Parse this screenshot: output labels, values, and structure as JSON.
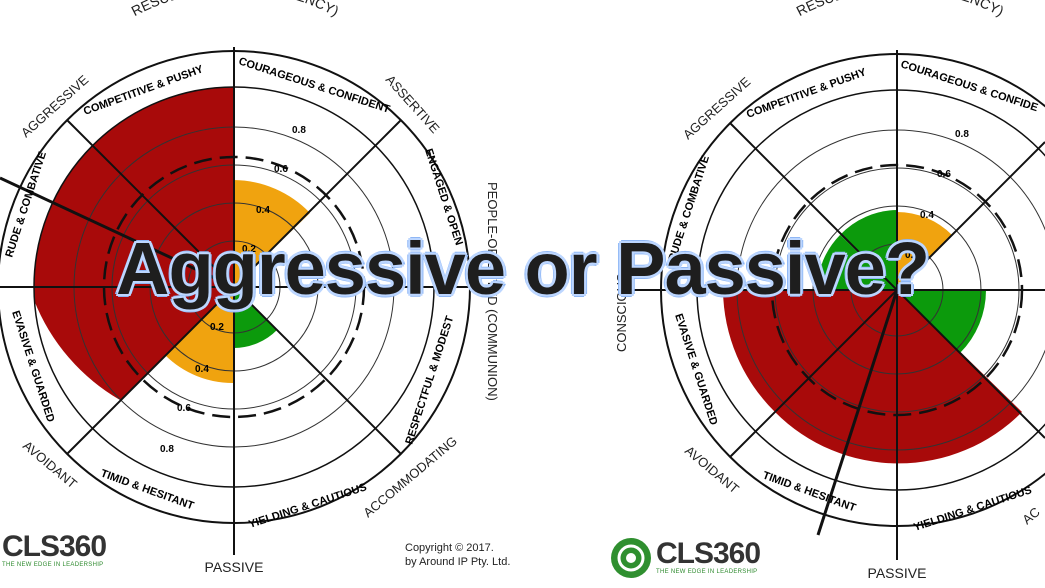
{
  "title": "Aggressive or Passive?",
  "left_wheel": {
    "top_label": "RESULTS-ORIENTED(AGENCY)",
    "bottom_label": "PASSIVE",
    "outer_labels": {
      "aggressive": "AGGRESSIVE",
      "assertive": "ASSERTIVE",
      "people_oriented": "PEOPLE-ORIENTED (COMMUNION)",
      "accommodating": "ACCOMMODATING",
      "avoidant": "AVOIDANT"
    },
    "segments": {
      "competitive": "COMPETITIVE & PUSHY",
      "courageous": "COURAGEOUS & CONFIDENT",
      "engaged": "ENGAGED & OPEN",
      "respectful": "RESPECTFUL & MODEST",
      "yielding": "YIELDING & CAUTIOUS",
      "timid": "TIMID & HESITANT",
      "evasive": "EVASIVE & GUARDED",
      "rude": "RUDE & COMBATIVE"
    },
    "ring_labels": {
      "r02": "0.2",
      "r04": "0.4",
      "r06": "0.6",
      "r08": "0.8"
    }
  },
  "right_wheel": {
    "top_label": "RESULTS-ORIENTED(AGENCY)",
    "bottom_label": "PASSIVE",
    "outer_labels": {
      "aggressive": "AGGRESSIVE",
      "avoidant": "AVOIDANT",
      "conscientious": "CONSCIOUS",
      "accommodating": "AC"
    },
    "segments": {
      "competitive": "COMPETITIVE & PUSHY",
      "courageous": "COURAGEOUS & CONFIDE",
      "rude": "RUDE & COMBATIVE",
      "evasive": "EVASIVE & GUARDED",
      "timid": "TIMID & HESITANT",
      "yielding": "YIELDING & CAUTIOUS"
    },
    "ring_labels": {
      "r02": "0.2",
      "r04": "0.4",
      "r06": "0.6",
      "r08": "0.8"
    }
  },
  "logo": {
    "name": "CLS360",
    "tagline": "THE NEW EDGE IN LEADERSHIP"
  },
  "copyright": {
    "line1": "Copyright © 2017.",
    "line2": "by Around IP Pty. Ltd."
  },
  "colors": {
    "red": "#a80a0a",
    "orange": "#f0a30f",
    "green": "#0c9a0c",
    "ink": "#111111"
  }
}
